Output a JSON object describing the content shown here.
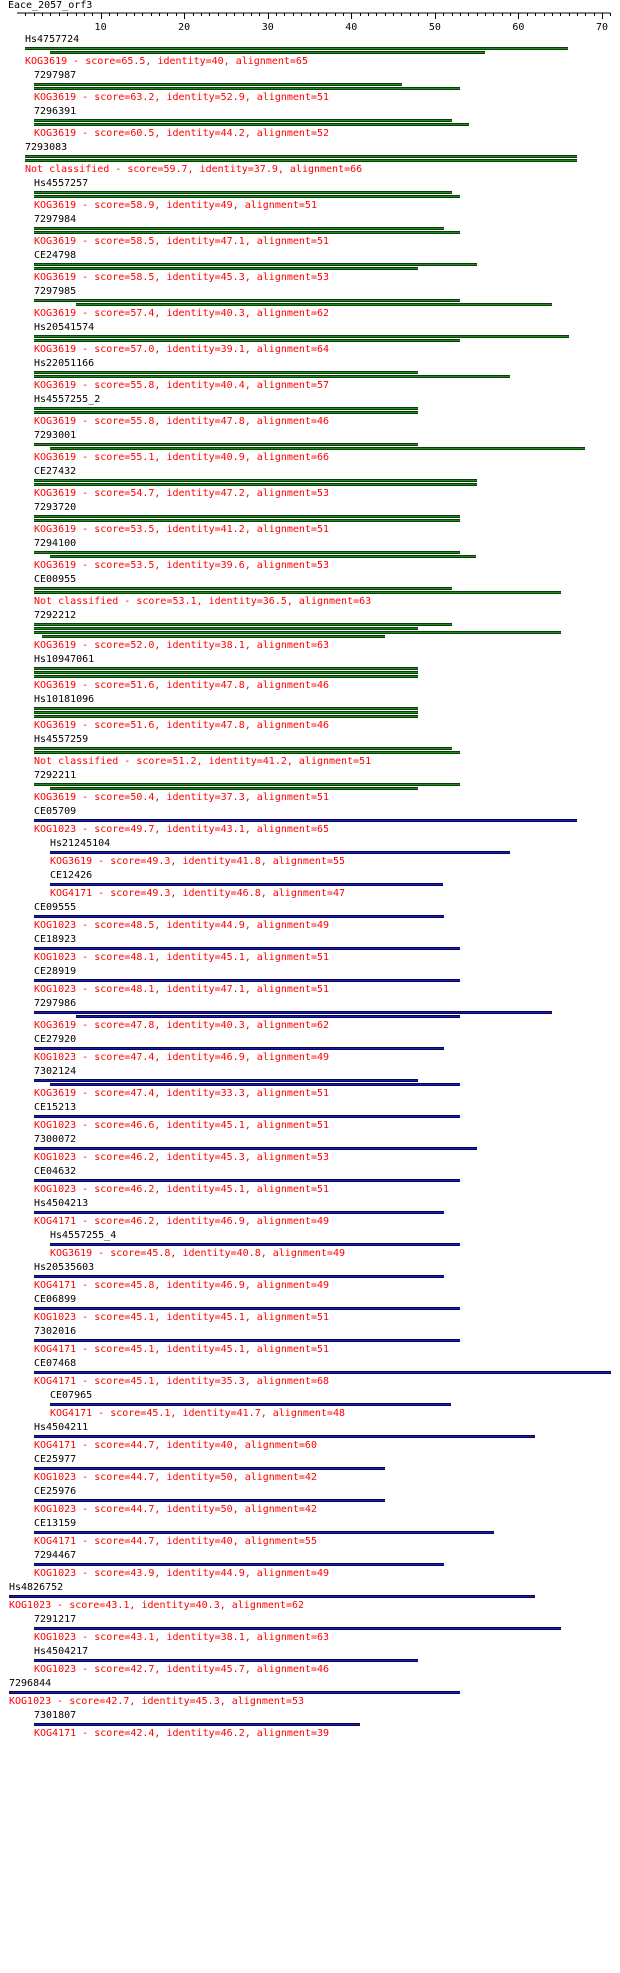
{
  "query": {
    "name": "Eace_2057_orf3"
  },
  "ruler": {
    "min": 1,
    "max": 71,
    "ticks": [
      10,
      20,
      30,
      40,
      50,
      60,
      70
    ]
  },
  "colors": {
    "green": "#1d8a1d",
    "blue": "#1b1ba8",
    "info": "#ff0000"
  },
  "hits": [
    {
      "name": "Hs4757724",
      "info": "KOG3619 - score=65.5, identity=40, alignment=65",
      "color": "green",
      "segments": [
        [
          1,
          66
        ],
        [
          4,
          56
        ]
      ]
    },
    {
      "name": "7297987",
      "info": "KOG3619 - score=63.2, identity=52.9, alignment=51",
      "color": "green",
      "segments": [
        [
          2,
          46
        ],
        [
          2,
          53
        ]
      ]
    },
    {
      "name": "7296391",
      "info": "KOG3619 - score=60.5, identity=44.2, alignment=52",
      "color": "green",
      "segments": [
        [
          2,
          52
        ],
        [
          2,
          54
        ]
      ]
    },
    {
      "name": "7293083",
      "info": "Not classified - score=59.7, identity=37.9, alignment=66",
      "color": "green",
      "segments": [
        [
          1,
          67
        ],
        [
          1,
          67
        ]
      ]
    },
    {
      "name": "Hs4557257",
      "info": "KOG3619 - score=58.9, identity=49, alignment=51",
      "color": "green",
      "segments": [
        [
          2,
          52
        ],
        [
          2,
          53
        ]
      ]
    },
    {
      "name": "7297984",
      "info": "KOG3619 - score=58.5, identity=47.1, alignment=51",
      "color": "green",
      "segments": [
        [
          2,
          51
        ],
        [
          2,
          53
        ]
      ]
    },
    {
      "name": "CE24798",
      "info": "KOG3619 - score=58.5, identity=45.3, alignment=53",
      "color": "green",
      "segments": [
        [
          2,
          55
        ],
        [
          2,
          48
        ]
      ]
    },
    {
      "name": "7297985",
      "info": "KOG3619 - score=57.4, identity=40.3, alignment=62",
      "color": "green",
      "segments": [
        [
          2,
          53
        ],
        [
          7,
          64
        ]
      ]
    },
    {
      "name": "Hs20541574",
      "info": "KOG3619 - score=57.0, identity=39.1, alignment=64",
      "color": "green",
      "segments": [
        [
          2,
          66
        ],
        [
          2,
          53
        ]
      ]
    },
    {
      "name": "Hs22051166",
      "info": "KOG3619 - score=55.8, identity=40.4, alignment=57",
      "color": "green",
      "segments": [
        [
          2,
          48
        ],
        [
          2,
          59
        ]
      ]
    },
    {
      "name": "Hs4557255_2",
      "info": "KOG3619 - score=55.8, identity=47.8, alignment=46",
      "color": "green",
      "segments": [
        [
          2,
          48
        ],
        [
          2,
          48
        ]
      ]
    },
    {
      "name": "7293001",
      "info": "KOG3619 - score=55.1, identity=40.9, alignment=66",
      "color": "green",
      "segments": [
        [
          2,
          48
        ],
        [
          4,
          68
        ]
      ]
    },
    {
      "name": "CE27432",
      "info": "KOG3619 - score=54.7, identity=47.2, alignment=53",
      "color": "green",
      "segments": [
        [
          2,
          55
        ],
        [
          2,
          55
        ]
      ]
    },
    {
      "name": "7293720",
      "info": "KOG3619 - score=53.5, identity=41.2, alignment=51",
      "color": "green",
      "segments": [
        [
          2,
          53
        ],
        [
          2,
          53
        ]
      ]
    },
    {
      "name": "7294100",
      "info": "KOG3619 - score=53.5, identity=39.6, alignment=53",
      "color": "green",
      "segments": [
        [
          2,
          53
        ],
        [
          4,
          55
        ]
      ]
    },
    {
      "name": "CE00955",
      "info": "Not classified - score=53.1, identity=36.5, alignment=63",
      "color": "green",
      "segments": [
        [
          2,
          52
        ],
        [
          2,
          65
        ]
      ]
    },
    {
      "name": "7292212",
      "info": "KOG3619 - score=52.0, identity=38.1, alignment=63",
      "color": "green",
      "segments": [
        [
          2,
          52
        ],
        [
          2,
          48
        ],
        [
          2,
          65
        ],
        [
          3,
          44
        ]
      ]
    },
    {
      "name": "Hs10947061",
      "info": "KOG3619 - score=51.6, identity=47.8, alignment=46",
      "color": "green",
      "segments": [
        [
          2,
          48
        ],
        [
          2,
          48
        ],
        [
          2,
          48
        ]
      ]
    },
    {
      "name": "Hs10181096",
      "info": "KOG3619 - score=51.6, identity=47.8, alignment=46",
      "color": "green",
      "segments": [
        [
          2,
          48
        ],
        [
          2,
          48
        ],
        [
          2,
          48
        ]
      ]
    },
    {
      "name": "Hs4557259",
      "info": "Not classified - score=51.2, identity=41.2, alignment=51",
      "color": "green",
      "segments": [
        [
          2,
          52
        ],
        [
          2,
          53
        ]
      ]
    },
    {
      "name": "7292211",
      "info": "KOG3619 - score=50.4, identity=37.3, alignment=51",
      "color": "green",
      "segments": [
        [
          2,
          53
        ],
        [
          4,
          48
        ]
      ]
    },
    {
      "name": "CE05709",
      "info": "KOG1023 - score=49.7, identity=43.1, alignment=65",
      "color": "blue",
      "segments": [
        [
          2,
          67
        ]
      ]
    },
    {
      "name": "Hs21245104",
      "info": "KOG3619 - score=49.3, identity=41.8, alignment=55",
      "color": "blue",
      "segments": [
        [
          4,
          59
        ]
      ]
    },
    {
      "name": "CE12426",
      "info": "KOG4171 - score=49.3, identity=46.8, alignment=47",
      "color": "blue",
      "segments": [
        [
          4,
          51
        ]
      ]
    },
    {
      "name": "CE09555",
      "info": "KOG1023 - score=48.5, identity=44.9, alignment=49",
      "color": "blue",
      "segments": [
        [
          2,
          51
        ]
      ]
    },
    {
      "name": "CE18923",
      "info": "KOG1023 - score=48.1, identity=45.1, alignment=51",
      "color": "blue",
      "segments": [
        [
          2,
          53
        ]
      ]
    },
    {
      "name": "CE28919",
      "info": "KOG1023 - score=48.1, identity=47.1, alignment=51",
      "color": "blue",
      "segments": [
        [
          2,
          53
        ]
      ]
    },
    {
      "name": "7297986",
      "info": "KOG3619 - score=47.8, identity=40.3, alignment=62",
      "color": "blue",
      "segments": [
        [
          2,
          64
        ],
        [
          7,
          53
        ]
      ]
    },
    {
      "name": "CE27920",
      "info": "KOG1023 - score=47.4, identity=46.9, alignment=49",
      "color": "blue",
      "segments": [
        [
          2,
          51
        ]
      ]
    },
    {
      "name": "7302124",
      "info": "KOG3619 - score=47.4, identity=33.3, alignment=51",
      "color": "blue",
      "segments": [
        [
          2,
          48
        ],
        [
          4,
          53
        ]
      ]
    },
    {
      "name": "CE15213",
      "info": "KOG1023 - score=46.6, identity=45.1, alignment=51",
      "color": "blue",
      "segments": [
        [
          2,
          53
        ]
      ]
    },
    {
      "name": "7300072",
      "info": "KOG1023 - score=46.2, identity=45.3, alignment=53",
      "color": "blue",
      "segments": [
        [
          2,
          55
        ]
      ]
    },
    {
      "name": "CE04632",
      "info": "KOG1023 - score=46.2, identity=45.1, alignment=51",
      "color": "blue",
      "segments": [
        [
          2,
          53
        ]
      ]
    },
    {
      "name": "Hs4504213",
      "info": "KOG4171 - score=46.2, identity=46.9, alignment=49",
      "color": "blue",
      "segments": [
        [
          2,
          51
        ]
      ]
    },
    {
      "name": "Hs4557255_4",
      "info": "KOG3619 - score=45.8, identity=40.8, alignment=49",
      "color": "blue",
      "segments": [
        [
          4,
          53
        ]
      ]
    },
    {
      "name": "Hs20535603",
      "info": "KOG4171 - score=45.8, identity=46.9, alignment=49",
      "color": "blue",
      "segments": [
        [
          2,
          51
        ]
      ]
    },
    {
      "name": "CE06899",
      "info": "KOG1023 - score=45.1, identity=45.1, alignment=51",
      "color": "blue",
      "segments": [
        [
          2,
          53
        ]
      ]
    },
    {
      "name": "7302016",
      "info": "KOG4171 - score=45.1, identity=45.1, alignment=51",
      "color": "blue",
      "segments": [
        [
          2,
          53
        ]
      ]
    },
    {
      "name": "CE07468",
      "info": "KOG4171 - score=45.1, identity=35.3, alignment=68",
      "color": "blue",
      "segments": [
        [
          2,
          71
        ]
      ]
    },
    {
      "name": "CE07965",
      "info": "KOG4171 - score=45.1, identity=41.7, alignment=48",
      "color": "blue",
      "segments": [
        [
          4,
          52
        ]
      ]
    },
    {
      "name": "Hs4504211",
      "info": "KOG4171 - score=44.7, identity=40, alignment=60",
      "color": "blue",
      "segments": [
        [
          2,
          62
        ]
      ]
    },
    {
      "name": "CE25977",
      "info": "KOG1023 - score=44.7, identity=50, alignment=42",
      "color": "blue",
      "segments": [
        [
          2,
          44
        ]
      ]
    },
    {
      "name": "CE25976",
      "info": "KOG1023 - score=44.7, identity=50, alignment=42",
      "color": "blue",
      "segments": [
        [
          2,
          44
        ]
      ]
    },
    {
      "name": "CE13159",
      "info": "KOG4171 - score=44.7, identity=40, alignment=55",
      "color": "blue",
      "segments": [
        [
          2,
          57
        ]
      ]
    },
    {
      "name": "7294467",
      "info": "KOG1023 - score=43.9, identity=44.9, alignment=49",
      "color": "blue",
      "segments": [
        [
          2,
          51
        ]
      ]
    },
    {
      "name": "Hs4826752",
      "info": "KOG1023 - score=43.1, identity=40.3, alignment=62",
      "color": "blue",
      "segments": [
        [
          0,
          62
        ]
      ]
    },
    {
      "name": "7291217",
      "info": "KOG1023 - score=43.1, identity=38.1, alignment=63",
      "color": "blue",
      "segments": [
        [
          2,
          65
        ]
      ]
    },
    {
      "name": "Hs4504217",
      "info": "KOG1023 - score=42.7, identity=45.7, alignment=46",
      "color": "blue",
      "segments": [
        [
          2,
          48
        ]
      ]
    },
    {
      "name": "7296844",
      "info": "KOG1023 - score=42.7, identity=45.3, alignment=53",
      "color": "blue",
      "segments": [
        [
          0,
          53
        ]
      ]
    },
    {
      "name": "7301807",
      "info": "KOG4171 - score=42.4, identity=46.2, alignment=39",
      "color": "blue",
      "segments": [
        [
          2,
          41
        ]
      ]
    }
  ]
}
